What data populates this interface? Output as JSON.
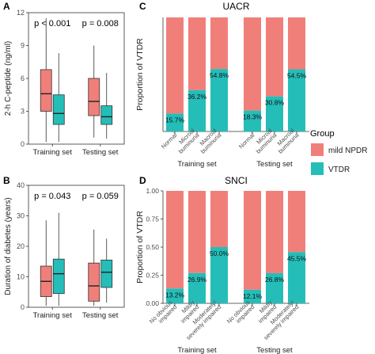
{
  "legend": {
    "title": "Group",
    "items": [
      {
        "name": "mild NPDR",
        "color": "#F07F7A"
      },
      {
        "name": "VTDR",
        "color": "#25BDB8"
      }
    ]
  },
  "chart_data": [
    {
      "panel": "A",
      "type": "box",
      "title": "",
      "ylabel": "2-h C-peptide (ng/ml)",
      "ylim": [
        0,
        12
      ],
      "yticks": [
        0,
        3,
        6,
        9,
        12
      ],
      "groups": [
        "Training set",
        "Testing set"
      ],
      "pvalues": [
        "p < 0.001",
        "p = 0.008"
      ],
      "series": [
        {
          "name": "mild NPDR",
          "color": "#F07F7A",
          "boxes": [
            {
              "min": 0.2,
              "q1": 3.0,
              "median": 4.6,
              "q3": 6.8,
              "max": 11.5
            },
            {
              "min": 0.6,
              "q1": 2.6,
              "median": 3.9,
              "q3": 6.0,
              "max": 9.0
            }
          ]
        },
        {
          "name": "VTDR",
          "color": "#25BDB8",
          "boxes": [
            {
              "min": 0.2,
              "q1": 1.8,
              "median": 2.8,
              "q3": 4.5,
              "max": 8.3
            },
            {
              "min": 0.5,
              "q1": 1.8,
              "median": 2.5,
              "q3": 3.5,
              "max": 6.5
            }
          ]
        }
      ]
    },
    {
      "panel": "B",
      "type": "box",
      "title": "",
      "ylabel": "Duration of diabetes (years)",
      "ylim": [
        0,
        40
      ],
      "yticks": [
        0,
        10,
        20,
        30,
        40
      ],
      "groups": [
        "Training set",
        "Testing set"
      ],
      "pvalues": [
        "p = 0.043",
        "p = 0.059"
      ],
      "series": [
        {
          "name": "mild NPDR",
          "color": "#F07F7A",
          "boxes": [
            {
              "min": 0.5,
              "q1": 3.5,
              "median": 8.5,
              "q3": 13.5,
              "max": 28.5
            },
            {
              "min": 0.5,
              "q1": 2.0,
              "median": 7.0,
              "q3": 14.5,
              "max": 25.5
            }
          ]
        },
        {
          "name": "VTDR",
          "color": "#25BDB8",
          "boxes": [
            {
              "min": 0.5,
              "q1": 4.5,
              "median": 11.0,
              "q3": 15.8,
              "max": 31.0
            },
            {
              "min": 1.5,
              "q1": 6.5,
              "median": 11.5,
              "q3": 15.5,
              "max": 22.5
            }
          ]
        }
      ]
    },
    {
      "panel": "C",
      "type": "bar",
      "stacked": true,
      "title": "UACR",
      "ylabel": "Proportion of VTDR",
      "ylim": [
        0,
        1
      ],
      "yticks": [
        "0.00",
        "0.25",
        "0.50",
        "0.75",
        "1.00"
      ],
      "yticks_visible": false,
      "groups": [
        {
          "label": "Training set",
          "categories": [
            {
              "label": [
                "Normal"
              ],
              "vtdr": 0.157,
              "value_label": "15.7%"
            },
            {
              "label": [
                "Microal",
                "buminuria"
              ],
              "vtdr": 0.362,
              "value_label": "36.2%"
            },
            {
              "label": [
                "Macroal",
                "buminuria"
              ],
              "vtdr": 0.548,
              "value_label": "54.8%"
            }
          ]
        },
        {
          "label": "Testing set",
          "categories": [
            {
              "label": [
                "Normal"
              ],
              "vtdr": 0.183,
              "value_label": "18.3%"
            },
            {
              "label": [
                "Microal",
                "buminuria"
              ],
              "vtdr": 0.308,
              "value_label": "30.8%"
            },
            {
              "label": [
                "Macroal",
                "buminuria"
              ],
              "vtdr": 0.545,
              "value_label": "54.5%"
            }
          ]
        }
      ]
    },
    {
      "panel": "D",
      "type": "bar",
      "stacked": true,
      "title": "SNCI",
      "ylabel": "Proportion of VTDR",
      "ylim": [
        0,
        1
      ],
      "yticks": [
        "0.00",
        "0.25",
        "0.50",
        "0.75",
        "1.00"
      ],
      "yticks_visible": true,
      "groups": [
        {
          "label": "Training set",
          "categories": [
            {
              "label": [
                "No obvious",
                "impaired"
              ],
              "vtdr": 0.132,
              "value_label": "13.2%"
            },
            {
              "label": [
                "Mildly",
                "impaired"
              ],
              "vtdr": 0.269,
              "value_label": "26.9%"
            },
            {
              "label": [
                "Moderately/",
                "severely impaired"
              ],
              "vtdr": 0.5,
              "value_label": "50.0%"
            }
          ]
        },
        {
          "label": "Testing set",
          "categories": [
            {
              "label": [
                "No obvious",
                "impaired"
              ],
              "vtdr": 0.121,
              "value_label": "12.1%"
            },
            {
              "label": [
                "Mildly",
                "impaired"
              ],
              "vtdr": 0.268,
              "value_label": "26.8%"
            },
            {
              "label": [
                "Moderately/",
                "severely impaired"
              ],
              "vtdr": 0.455,
              "value_label": "45.5%"
            }
          ]
        }
      ]
    }
  ]
}
